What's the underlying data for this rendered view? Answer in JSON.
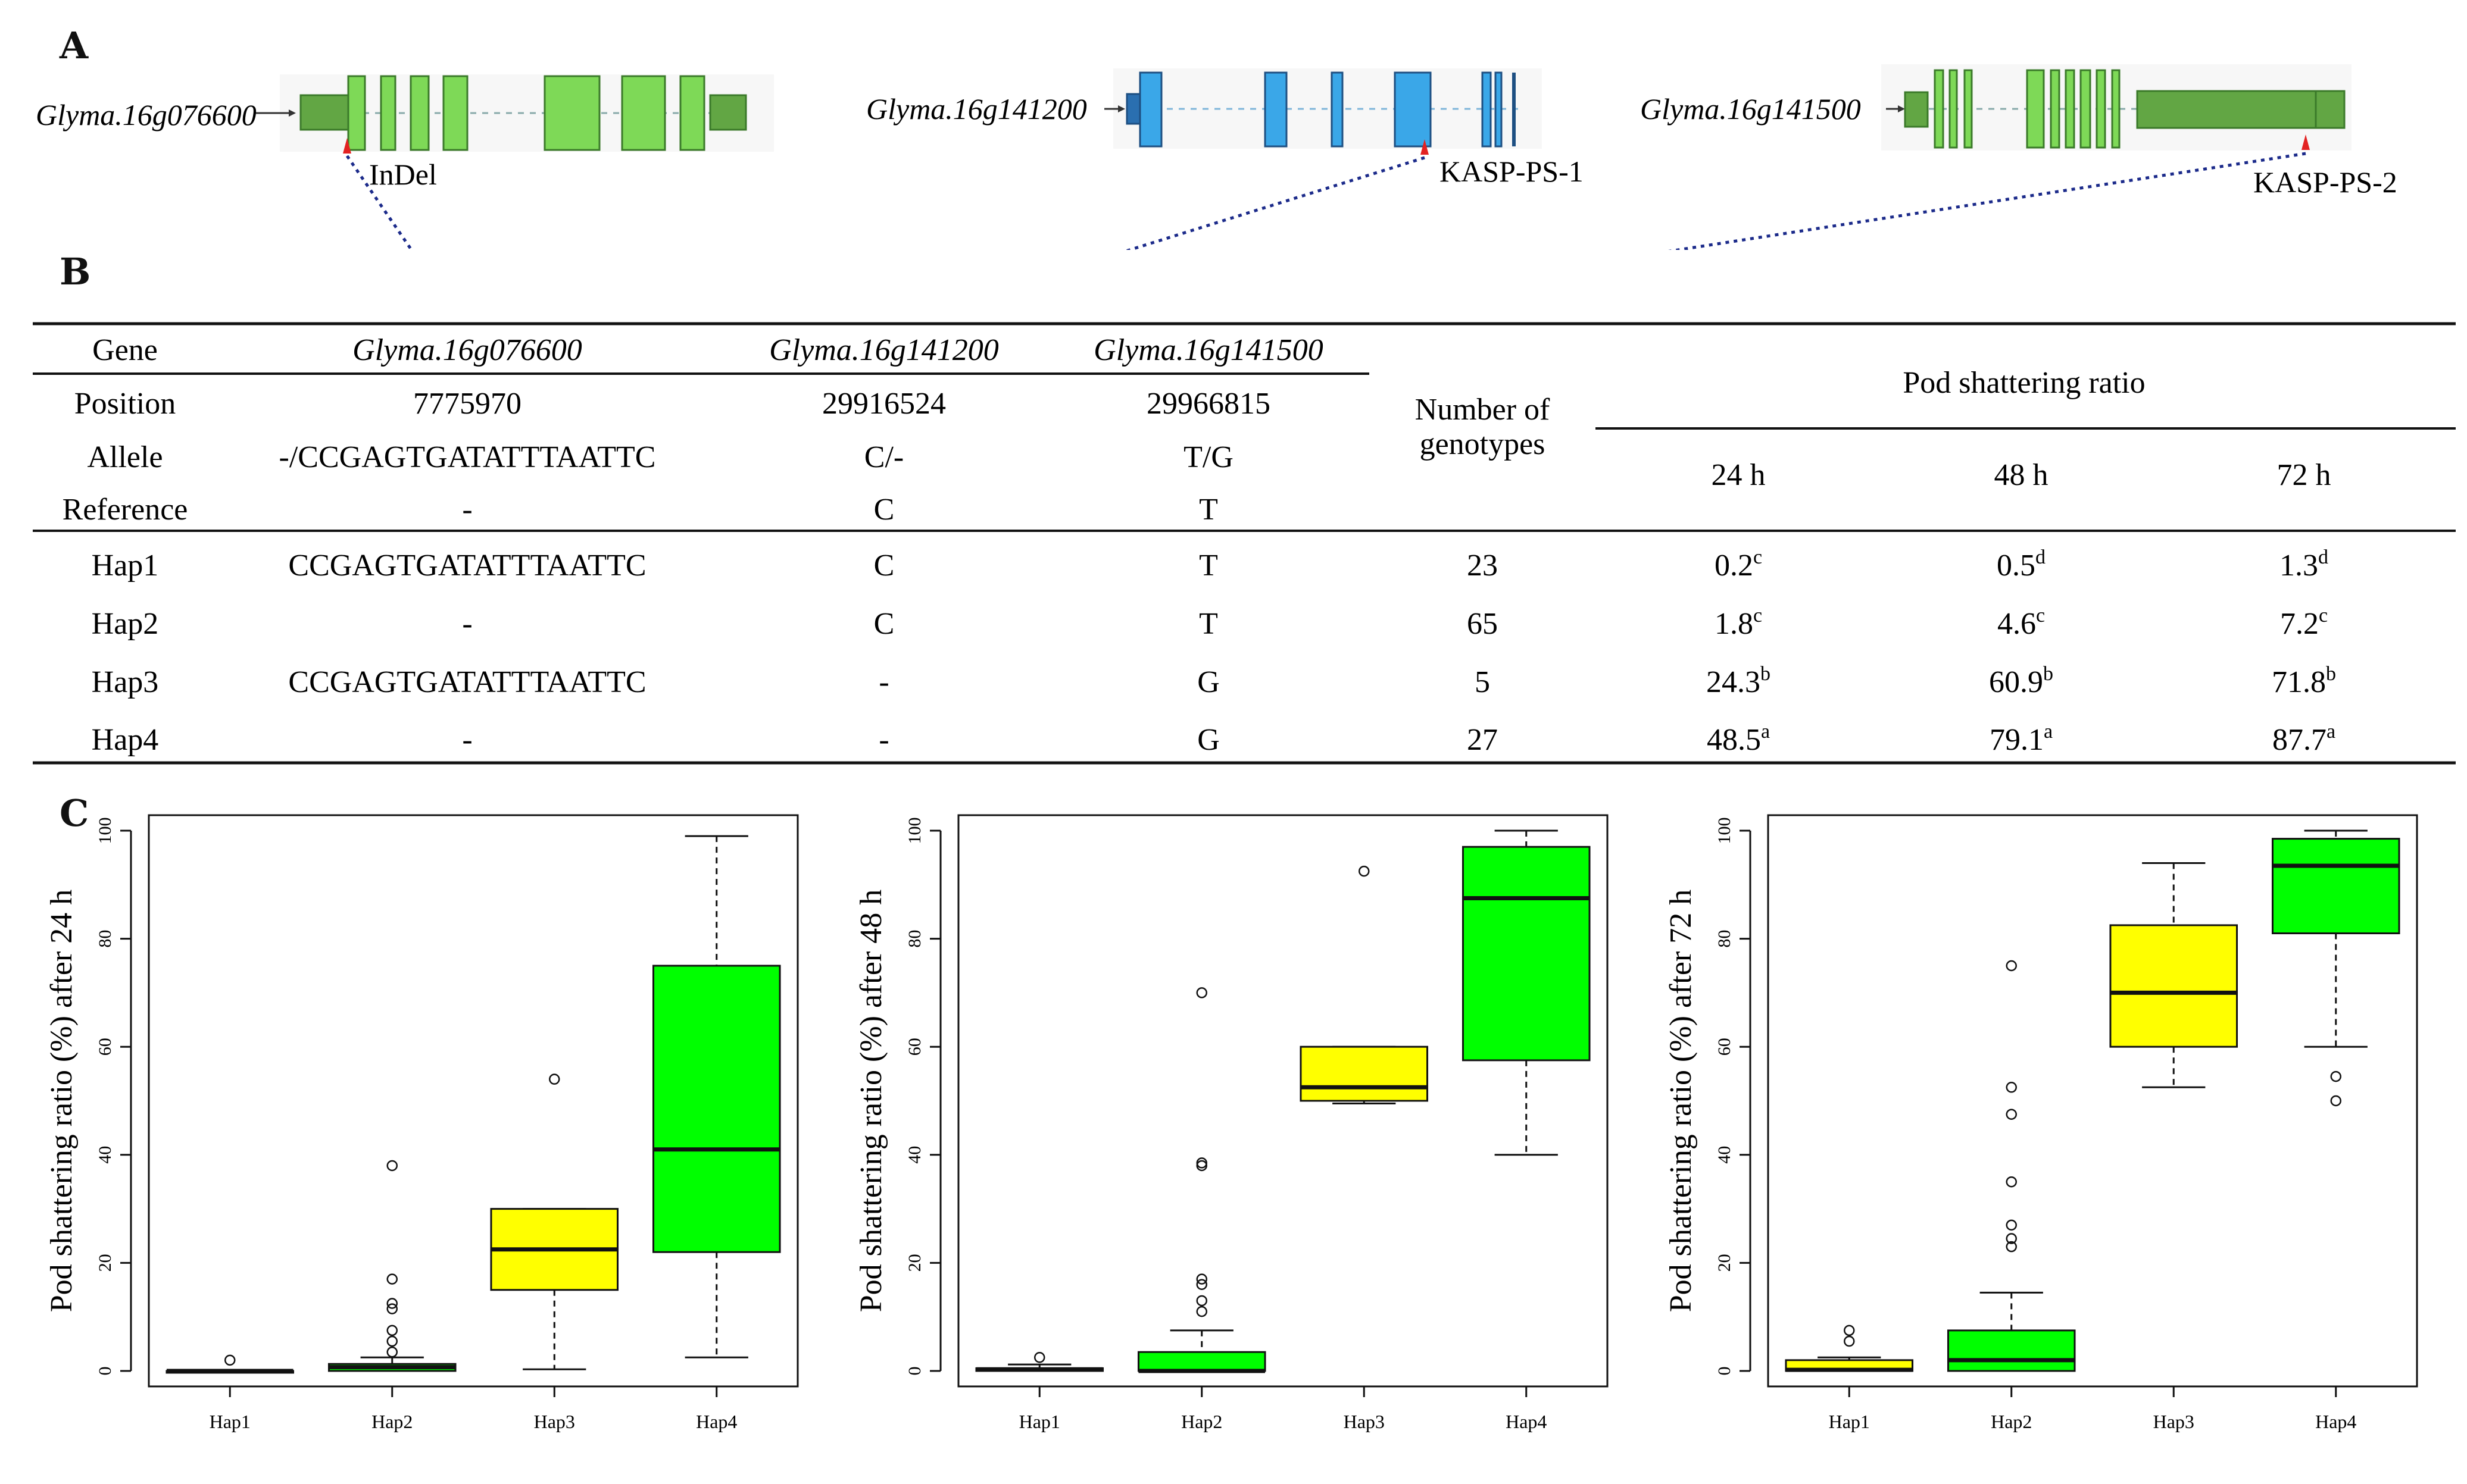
{
  "panels": {
    "A": "A",
    "B": "B",
    "C": "C"
  },
  "genes": [
    {
      "name": "Glyma.16g076600",
      "marker": "InDel",
      "color": "#7ed957"
    },
    {
      "name": "Glyma.16g141200",
      "marker": "KASP-PS-1",
      "color": "#3aa7e8"
    },
    {
      "name": "Glyma.16g141500",
      "marker": "KASP-PS-2",
      "color": "#7ed957"
    }
  ],
  "table": {
    "row_labels": [
      "Gene",
      "Position",
      "Allele",
      "Reference"
    ],
    "gene_names": [
      "Glyma.16g076600",
      "Glyma.16g141200",
      "Glyma.16g141500"
    ],
    "positions": [
      "7775970",
      "29916524",
      "29966815"
    ],
    "alleles": [
      "-/CCGAGTGATATTTAATTC",
      "C/-",
      "T/G"
    ],
    "references": [
      "-",
      "C",
      "T"
    ],
    "num_genotypes_header": [
      "Number of",
      "genotypes"
    ],
    "pod_header": "Pod shattering ratio",
    "time_headers": [
      "24 h",
      "48 h",
      "72 h"
    ],
    "haplotypes": [
      {
        "name": "Hap1",
        "allele1": "CCGAGTGATATTTAATTC",
        "allele2": "C",
        "allele3": "T",
        "n": "23",
        "v24": "0.2",
        "s24": "c",
        "v48": "0.5",
        "s48": "d",
        "v72": "1.3",
        "s72": "d"
      },
      {
        "name": "Hap2",
        "allele1": "-",
        "allele2": "C",
        "allele3": "T",
        "n": "65",
        "v24": "1.8",
        "s24": "c",
        "v48": "4.6",
        "s48": "c",
        "v72": "7.2",
        "s72": "c"
      },
      {
        "name": "Hap3",
        "allele1": "CCGAGTGATATTTAATTC",
        "allele2": "-",
        "allele3": "G",
        "n": "5",
        "v24": "24.3",
        "s24": "b",
        "v48": "60.9",
        "s48": "b",
        "v72": "71.8",
        "s72": "b"
      },
      {
        "name": "Hap4",
        "allele1": "-",
        "allele2": "-",
        "allele3": "G",
        "n": "27",
        "v24": "48.5",
        "s24": "a",
        "v48": "79.1",
        "s48": "a",
        "v72": "87.7",
        "s72": "a"
      }
    ]
  },
  "chart_data": [
    {
      "type": "boxplot",
      "ylabel": "Pod shattering ratio (%) after 24 h",
      "ylim": [
        0,
        100
      ],
      "yticks": [
        "0",
        "20",
        "40",
        "60",
        "80",
        "100"
      ],
      "categories": [
        "Hap1",
        "Hap2",
        "Hap3",
        "Hap4"
      ],
      "boxes": [
        {
          "min": 0,
          "q1": 0,
          "median": 0,
          "q3": 0,
          "max": 0,
          "color": "#ffff00",
          "outliers": [
            2
          ]
        },
        {
          "min": 0,
          "q1": 0,
          "median": 0.7,
          "q3": 1.3,
          "max": 2.5,
          "color": "#00ff00",
          "outliers": [
            3.5,
            5.5,
            7.5,
            11.5,
            12.5,
            17,
            38
          ]
        },
        {
          "min": 0.3,
          "q1": 15,
          "median": 22.5,
          "q3": 30,
          "max": 30,
          "color": "#ffff00",
          "outliers": [
            54
          ]
        },
        {
          "min": 2.5,
          "q1": 22,
          "median": 41,
          "q3": 75,
          "max": 99,
          "color": "#00ff00",
          "outliers": []
        }
      ]
    },
    {
      "type": "boxplot",
      "ylabel": "Pod shattering ratio (%) after 48 h",
      "ylim": [
        0,
        100
      ],
      "yticks": [
        "0",
        "20",
        "40",
        "60",
        "80",
        "100"
      ],
      "categories": [
        "Hap1",
        "Hap2",
        "Hap3",
        "Hap4"
      ],
      "boxes": [
        {
          "min": 0,
          "q1": 0,
          "median": 0.3,
          "q3": 0.5,
          "max": 1.2,
          "color": "#ffff00",
          "outliers": [
            2.5
          ]
        },
        {
          "min": 0,
          "q1": 0,
          "median": 0,
          "q3": 3.5,
          "max": 7.5,
          "color": "#00ff00",
          "outliers": [
            11,
            13,
            16,
            17,
            38,
            38.5,
            70
          ]
        },
        {
          "min": 49.5,
          "q1": 50,
          "median": 52.5,
          "q3": 60,
          "max": 60,
          "color": "#ffff00",
          "outliers": [
            92.5
          ]
        },
        {
          "min": 40,
          "q1": 57.5,
          "median": 87.5,
          "q3": 97,
          "max": 100,
          "color": "#00ff00",
          "outliers": []
        }
      ]
    },
    {
      "type": "boxplot",
      "ylabel": "Pod shattering ratio (%) after 72 h",
      "ylim": [
        0,
        100
      ],
      "yticks": [
        "0",
        "20",
        "40",
        "60",
        "80",
        "100"
      ],
      "categories": [
        "Hap1",
        "Hap2",
        "Hap3",
        "Hap4"
      ],
      "boxes": [
        {
          "min": 0,
          "q1": 0,
          "median": 0.2,
          "q3": 2,
          "max": 2.5,
          "color": "#ffff00",
          "outliers": [
            5.5,
            7.5
          ]
        },
        {
          "min": 0,
          "q1": 0,
          "median": 2,
          "q3": 7.5,
          "max": 14.5,
          "color": "#00ff00",
          "outliers": [
            23,
            24.5,
            27,
            35,
            47.5,
            52.5,
            75
          ]
        },
        {
          "min": 52.5,
          "q1": 60,
          "median": 70,
          "q3": 82.5,
          "max": 94,
          "color": "#ffff00",
          "outliers": []
        },
        {
          "min": 60,
          "q1": 81,
          "median": 93.5,
          "q3": 98.5,
          "max": 100,
          "color": "#00ff00",
          "outliers": [
            50,
            54.5
          ]
        }
      ]
    }
  ]
}
